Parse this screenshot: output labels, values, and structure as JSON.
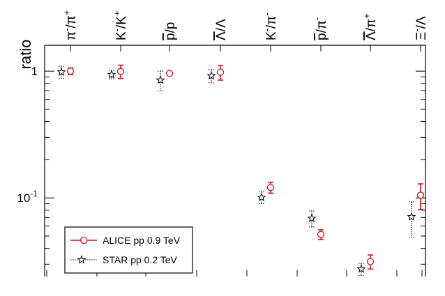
{
  "chart_data": {
    "type": "scatter",
    "title": "",
    "xlabel": "",
    "ylabel": "ratio",
    "yscale": "log",
    "ylim": [
      0.024,
      1.6
    ],
    "grid": false,
    "legend_position": "bottom-left",
    "categories": [
      {
        "base": "π",
        "sup": "-",
        "sep": "/",
        "base2": "π",
        "sup2": "+",
        "bar": false
      },
      {
        "base": "K",
        "sup": "-",
        "sep": "/",
        "base2": "K",
        "sup2": "+",
        "bar": false
      },
      {
        "base": "p",
        "sup": "",
        "sep": "/",
        "base2": "p",
        "sup2": "",
        "bar": true
      },
      {
        "base": "Λ",
        "sup": "",
        "sep": "/",
        "base2": "Λ",
        "sup2": "",
        "bar": true
      },
      {
        "base": "K",
        "sup": "-",
        "sep": "/",
        "base2": "π",
        "sup2": "-",
        "bar": false
      },
      {
        "base": "p",
        "sup": "",
        "sep": "/",
        "base2": "π",
        "sup2": "-",
        "bar": true
      },
      {
        "base": "Λ",
        "sup": "",
        "sep": "/",
        "base2": "π",
        "sup2": "+",
        "bar": true
      },
      {
        "base": "Ξ",
        "sup": "-",
        "sep": "/",
        "base2": "Λ",
        "sup2": "",
        "bar": false
      }
    ],
    "y_tick_labels": [
      {
        "value": 1,
        "base": "1",
        "exp": ""
      },
      {
        "value": 0.1,
        "base": "10",
        "exp": "-1"
      }
    ],
    "series": [
      {
        "name": "ALICE pp 0.9 TeV",
        "color": "#c8141e",
        "marker": "circle",
        "points": [
          {
            "cat": 0,
            "y": 1.0,
            "err": 0.06
          },
          {
            "cat": 1,
            "y": 0.995,
            "err": 0.12
          },
          {
            "cat": 2,
            "y": 0.96,
            "err": 0.02
          },
          {
            "cat": 3,
            "y": 0.98,
            "err": 0.13
          },
          {
            "cat": 4,
            "y": 0.121,
            "err": 0.012
          },
          {
            "cat": 5,
            "y": 0.0515,
            "err": 0.0045
          },
          {
            "cat": 6,
            "y": 0.0315,
            "err": 0.004
          },
          {
            "cat": 7,
            "y": 0.105,
            "err": 0.024
          }
        ]
      },
      {
        "name": "STAR pp 0.2 TeV",
        "color": "#000000",
        "marker": "star",
        "points": [
          {
            "cat": 0,
            "y": 0.985,
            "err": 0.11
          },
          {
            "cat": 1,
            "y": 0.94,
            "err": 0.07
          },
          {
            "cat": 2,
            "y": 0.85,
            "err": 0.15
          },
          {
            "cat": 3,
            "y": 0.92,
            "err": 0.11
          },
          {
            "cat": 4,
            "y": 0.101,
            "err": 0.011
          },
          {
            "cat": 5,
            "y": 0.069,
            "err": 0.01
          },
          {
            "cat": 6,
            "y": 0.0275,
            "err": 0.003
          },
          {
            "cat": 7,
            "y": 0.071,
            "err": 0.022
          }
        ]
      }
    ]
  }
}
